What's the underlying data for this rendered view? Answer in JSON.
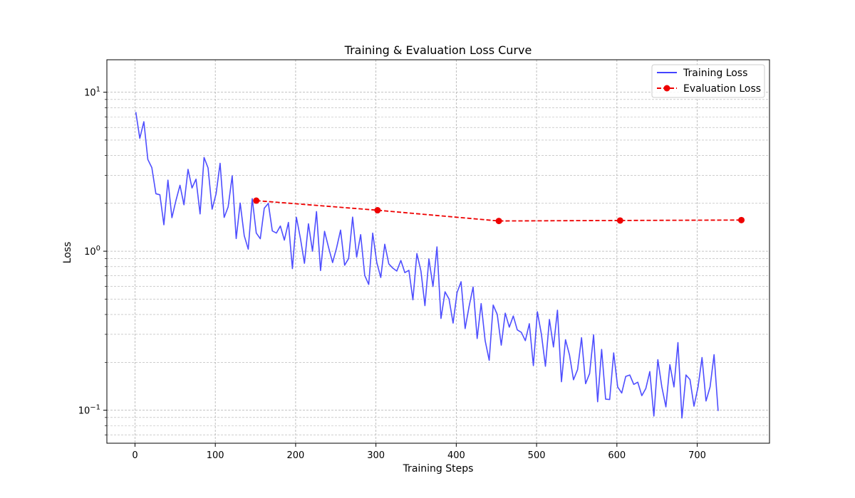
{
  "chart_data": {
    "type": "line",
    "title": "Training & Evaluation Loss Curve",
    "xlabel": "Training Steps",
    "ylabel": "Loss",
    "xlim": [
      -35,
      790
    ],
    "ylim": [
      0.062,
      16
    ],
    "yscale": "log",
    "grid": true,
    "legend_position": "top-right",
    "x_ticks": [
      0,
      100,
      200,
      300,
      400,
      500,
      600,
      700
    ],
    "x_tick_labels": [
      "0",
      "100",
      "200",
      "300",
      "400",
      "500",
      "600",
      "700"
    ],
    "y_major_ticks": [
      0.1,
      1,
      10
    ],
    "y_tick_labels": [
      {
        "base": "10",
        "exp": "−1"
      },
      {
        "base": "10",
        "exp": "0"
      },
      {
        "base": "10",
        "exp": "1"
      }
    ],
    "series": [
      {
        "name": "Training Loss",
        "color": "#4444ff",
        "style": "solid",
        "x_start": 1,
        "x_step": 5,
        "values": [
          7.5,
          6.0,
          5.6,
          3.4,
          3.0,
          2.3,
          2.2,
          1.5,
          2.4,
          2.3,
          1.4,
          2.6,
          2.8,
          2.2,
          2.5,
          1.6,
          2.5,
          3.5,
          3.0,
          2.6,
          2.3,
          2.5,
          2.0,
          1.9,
          2.0,
          1.7,
          1.5,
          1.6,
          1.5,
          1.4,
          1.3,
          1.4,
          1.6,
          1.8,
          1.2,
          1.3,
          1.4,
          1.2,
          1.3,
          1.1,
          1.1,
          1.2,
          1.2,
          1.0,
          1.0,
          1.0,
          1.1,
          1.2,
          0.95,
          1.2,
          1.05,
          0.95,
          1.0,
          0.9,
          1.1,
          1.3,
          0.95,
          0.9,
          0.9,
          0.85,
          0.85,
          0.8,
          0.95,
          0.75,
          0.7,
          0.75,
          0.85,
          0.75,
          0.65,
          0.7,
          0.65,
          0.75,
          0.65,
          0.6,
          0.6,
          0.6,
          0.55,
          0.5,
          0.45,
          0.5,
          0.55,
          0.45,
          0.4,
          0.45,
          0.4,
          0.4,
          0.35,
          0.35,
          0.3,
          0.3,
          0.4,
          0.3,
          0.35,
          0.3,
          0.35,
          0.32,
          0.3,
          0.28,
          0.3,
          0.27,
          0.28,
          0.3,
          0.27,
          0.25,
          0.25,
          0.24,
          0.22,
          0.25,
          0.2,
          0.22,
          0.18,
          0.2,
          0.18,
          0.17,
          0.2,
          0.16,
          0.18,
          0.15,
          0.17,
          0.15,
          0.14,
          0.15,
          0.14,
          0.15,
          0.13,
          0.15,
          0.12,
          0.14,
          0.15,
          0.13,
          0.14,
          0.14,
          0.15,
          0.13,
          0.14,
          0.15,
          0.13,
          0.15,
          0.14,
          0.15,
          0.14,
          0.15,
          0.14,
          0.14,
          0.15,
          0.14
        ],
        "noise": [
          1.0,
          0.8,
          1.1,
          1.0,
          1.25,
          1.0,
          0.85,
          1.15,
          1.0,
          0.9,
          1.2,
          1.0,
          0.8,
          1.1,
          1.0,
          1.3,
          0.85,
          1.0,
          1.15,
          0.9,
          1.0,
          1.25,
          0.8,
          1.0,
          1.1,
          0.9,
          1.2,
          1.0,
          0.85,
          1.15
        ]
      },
      {
        "name": "Evaluation Loss",
        "color": "#ee0000",
        "style": "dashed",
        "markers": true,
        "x": [
          151,
          302,
          453,
          604,
          755
        ],
        "values": [
          2.08,
          1.81,
          1.55,
          1.56,
          1.57
        ]
      }
    ]
  }
}
